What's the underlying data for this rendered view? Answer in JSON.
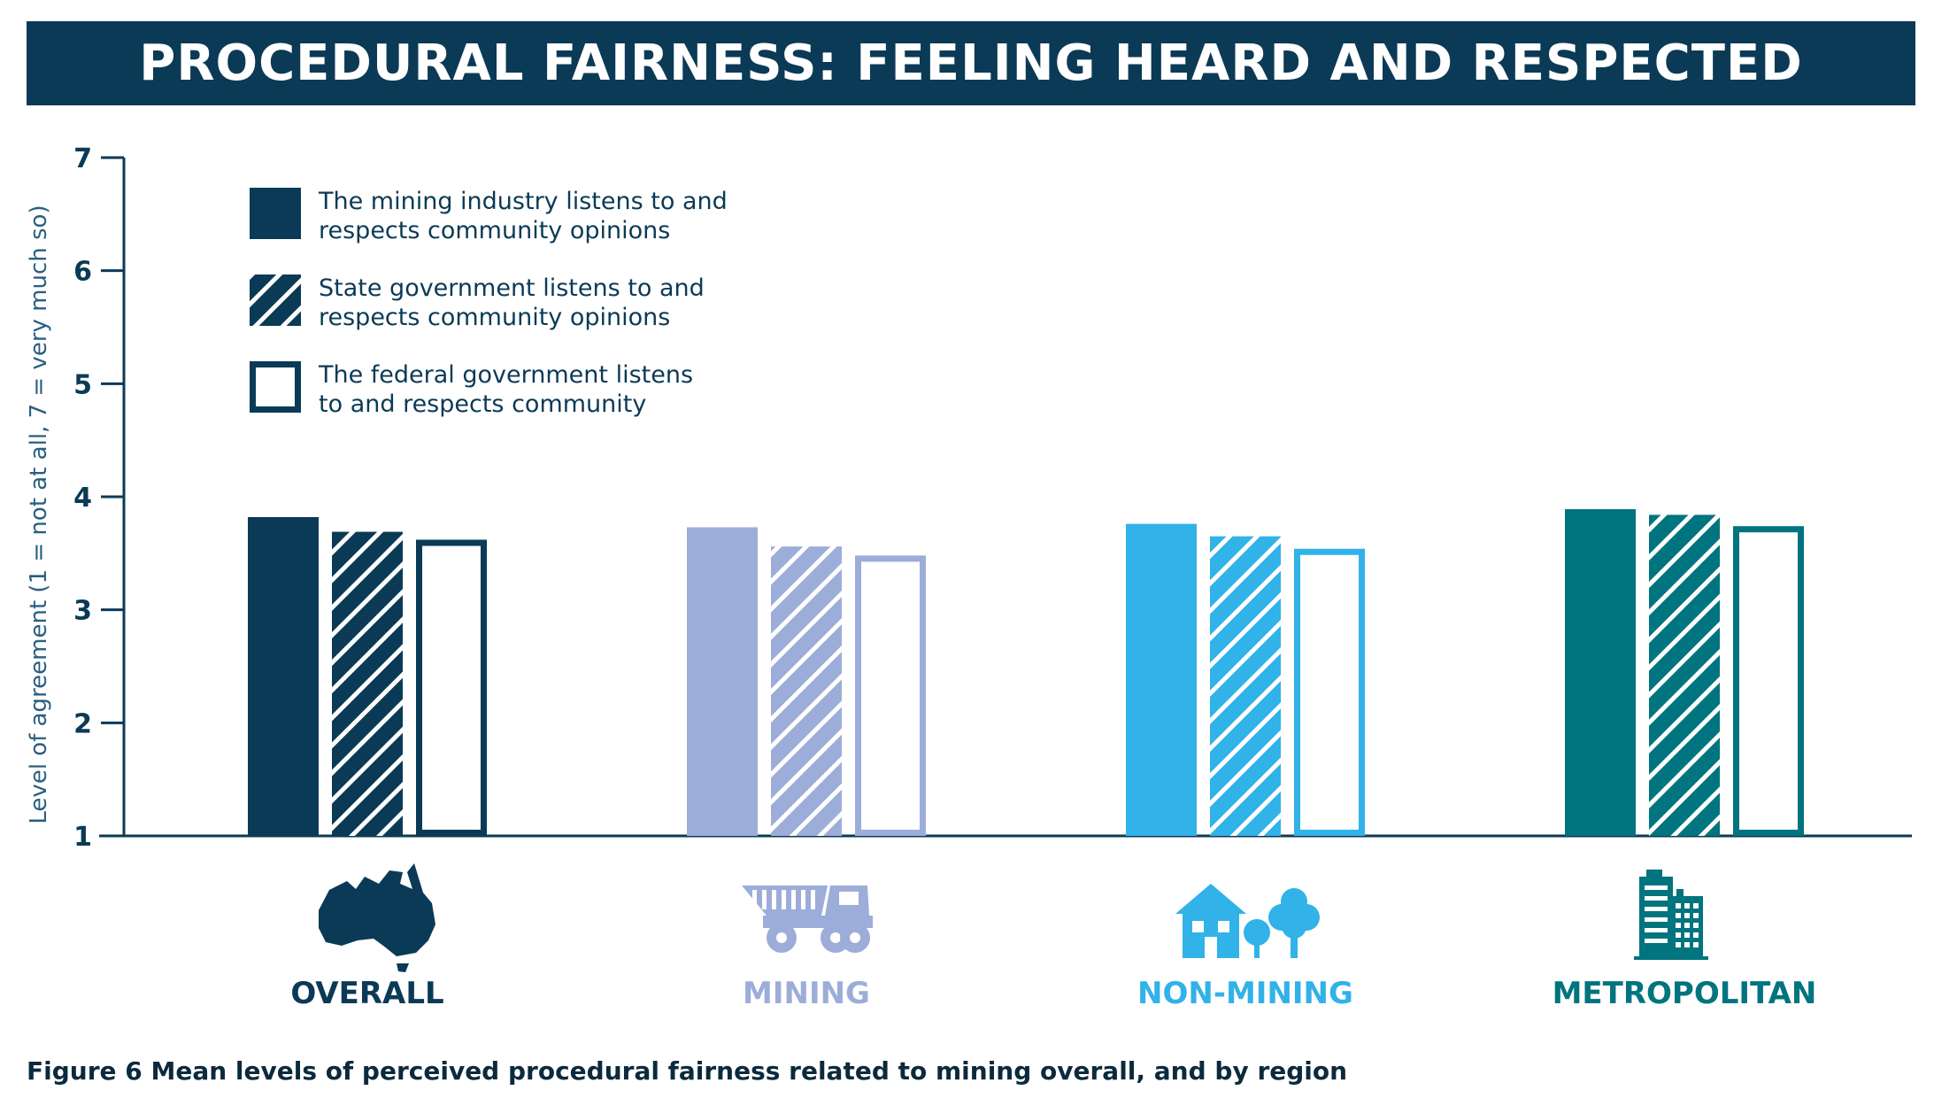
{
  "header": {
    "title": "PROCEDURAL FAIRNESS: FEELING HEARD AND RESPECTED"
  },
  "caption": "Figure 6 Mean levels of perceived procedural fairness related to mining overall, and by region",
  "chart_data": {
    "type": "bar",
    "title": "PROCEDURAL FAIRNESS: FEELING HEARD AND RESPECTED",
    "ylabel": "Level of agreement (1 = not at all, 7 = very much so)",
    "xlabel": "",
    "ylim": [
      1,
      7
    ],
    "yticks": [
      "1",
      "2",
      "3",
      "4",
      "5",
      "6",
      "7"
    ],
    "categories": [
      "OVERALL",
      "MINING",
      "NON-MINING",
      "METROPOLITAN"
    ],
    "category_colors": [
      "#0b3a56",
      "#9dadd9",
      "#31b2e8",
      "#00747f"
    ],
    "category_icons": [
      "australia-map-icon",
      "mining-truck-icon",
      "house-and-trees-icon",
      "city-buildings-icon"
    ],
    "series": [
      {
        "name": "The mining industry listens to and respects community opinions",
        "legend_lines": [
          "The mining industry listens to and",
          "respects community opinions"
        ],
        "style": "solid",
        "values": [
          3.82,
          3.73,
          3.76,
          3.89
        ]
      },
      {
        "name": "State government listens to and respects community opinions",
        "legend_lines": [
          "State government listens to and",
          "respects community opinions"
        ],
        "style": "hatched",
        "values": [
          3.69,
          3.56,
          3.65,
          3.84
        ]
      },
      {
        "name": "The federal government listens to and respects community",
        "legend_lines": [
          "The federal government listens",
          "to and respects community"
        ],
        "style": "outline",
        "values": [
          3.62,
          3.48,
          3.54,
          3.74
        ]
      }
    ],
    "legend_position": "top-left",
    "grid": false
  }
}
